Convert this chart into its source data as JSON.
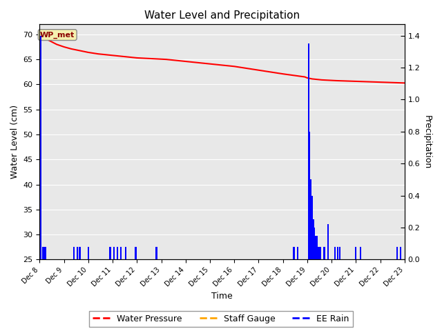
{
  "title": "Water Level and Precipitation",
  "xlabel": "Time",
  "ylabel_left": "Water Level (cm)",
  "ylabel_right": "Precipitation",
  "annotation_text": "WP_met",
  "water_pressure_color": "red",
  "rain_color": "blue",
  "staff_gauge_color": "orange",
  "bg_color": "#e8e8e8",
  "ylim_left": [
    25,
    72
  ],
  "ylim_right": [
    0.0,
    1.47
  ],
  "yticks_left": [
    25,
    30,
    35,
    40,
    45,
    50,
    55,
    60,
    65,
    70
  ],
  "yticks_right": [
    0.0,
    0.2,
    0.4,
    0.6,
    0.8,
    1.0,
    1.2,
    1.4
  ],
  "wp_days": [
    0.0,
    0.1,
    0.2,
    0.3,
    0.5,
    0.7,
    1.0,
    1.3,
    1.6,
    2.0,
    2.4,
    2.8,
    3.2,
    3.6,
    4.0,
    4.4,
    4.8,
    5.2,
    5.6,
    6.0,
    6.4,
    6.8,
    7.2,
    7.6,
    8.0,
    8.4,
    8.8,
    9.2,
    9.6,
    10.0,
    10.3,
    10.6,
    10.9,
    11.0,
    11.1,
    11.2,
    11.4,
    11.6,
    11.8,
    12.0,
    12.2,
    12.5,
    12.8,
    13.1,
    13.4,
    13.7,
    14.0,
    14.3,
    14.6,
    14.9,
    15.2
  ],
  "wp_vals": [
    70.0,
    69.7,
    69.3,
    69.0,
    68.5,
    68.0,
    67.5,
    67.1,
    66.8,
    66.4,
    66.1,
    65.9,
    65.7,
    65.5,
    65.3,
    65.2,
    65.1,
    65.0,
    64.8,
    64.6,
    64.4,
    64.2,
    64.0,
    63.8,
    63.6,
    63.3,
    63.0,
    62.7,
    62.4,
    62.1,
    61.9,
    61.7,
    61.5,
    61.3,
    61.2,
    61.1,
    61.0,
    60.9,
    60.85,
    60.8,
    60.75,
    60.7,
    60.65,
    60.6,
    60.55,
    60.5,
    60.45,
    60.4,
    60.35,
    60.3,
    60.25
  ],
  "rain_days": [
    0.05,
    0.12,
    0.18,
    0.25,
    1.4,
    1.55,
    1.65,
    2.0,
    2.9,
    3.05,
    3.2,
    3.35,
    3.55,
    3.95,
    4.8,
    10.45,
    10.6,
    11.05,
    11.1,
    11.15,
    11.2,
    11.25,
    11.3,
    11.35,
    11.4,
    11.45,
    11.5,
    11.55,
    11.7,
    11.85,
    12.15,
    12.25,
    12.35,
    13.0,
    13.2,
    14.7,
    14.85
  ],
  "rain_vals": [
    1.4,
    0.08,
    0.08,
    0.08,
    0.08,
    0.08,
    0.08,
    0.08,
    0.08,
    0.08,
    0.08,
    0.08,
    0.08,
    0.08,
    0.08,
    0.08,
    0.08,
    1.35,
    0.8,
    0.5,
    0.4,
    0.25,
    0.2,
    0.15,
    0.15,
    0.08,
    0.08,
    0.08,
    0.08,
    0.22,
    0.08,
    0.08,
    0.08,
    0.08,
    0.08,
    0.08,
    0.08
  ],
  "xtick_days": [
    0,
    1,
    2,
    3,
    4,
    5,
    6,
    7,
    8,
    9,
    10,
    11,
    12,
    13,
    14,
    15
  ],
  "xtick_labels": [
    "Dec 8",
    "Dec 9",
    "Dec 10",
    "Dec 11",
    "Dec 12",
    "Dec 13",
    "Dec 14",
    "Dec 15",
    "Dec 16",
    "Dec 17",
    "Dec 18",
    "Dec 19",
    "Dec 20",
    "Dec 21",
    "Dec 22",
    "Dec 23"
  ]
}
